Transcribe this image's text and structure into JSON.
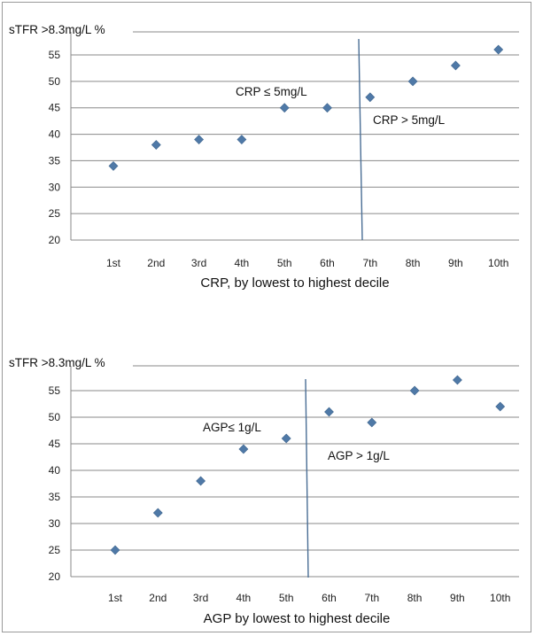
{
  "chart_data": [
    {
      "type": "scatter",
      "ylabel": "sTFR >8.3mg/L %",
      "xlabel": "CRP, by lowest to highest decile",
      "categories": [
        "1st",
        "2nd",
        "3rd",
        "4th",
        "5th",
        "6th",
        "7th",
        "8th",
        "9th",
        "10th"
      ],
      "values": [
        34,
        38,
        39,
        39,
        45,
        45,
        47,
        50,
        53,
        56
      ],
      "ylim": [
        20,
        55
      ],
      "yticks": [
        20,
        25,
        30,
        35,
        40,
        45,
        50,
        55
      ],
      "grid": true,
      "divider_between": [
        "6th",
        "7th"
      ],
      "annotations": [
        "CRP ≤ 5mg/L",
        "CRP > 5mg/L"
      ],
      "colors": {
        "marker": "#4f79a7",
        "divider": "#4a6e95",
        "grid": "#8a8a8a"
      }
    },
    {
      "type": "scatter",
      "ylabel": "sTFR >8.3mg/L %",
      "xlabel": "AGP by lowest to highest decile",
      "categories": [
        "1st",
        "2nd",
        "3rd",
        "4th",
        "5th",
        "6th",
        "7th",
        "8th",
        "9th",
        "10th"
      ],
      "values": [
        25,
        32,
        38,
        44,
        46,
        51,
        49,
        55,
        57,
        52
      ],
      "ylim": [
        20,
        55
      ],
      "yticks": [
        20,
        25,
        30,
        35,
        40,
        45,
        50,
        55
      ],
      "grid": true,
      "divider_between": [
        "5th",
        "6th"
      ],
      "annotations": [
        "AGP≤ 1g/L",
        "AGP > 1g/L"
      ],
      "colors": {
        "marker": "#4f79a7",
        "divider": "#4a6e95",
        "grid": "#8a8a8a"
      }
    }
  ]
}
